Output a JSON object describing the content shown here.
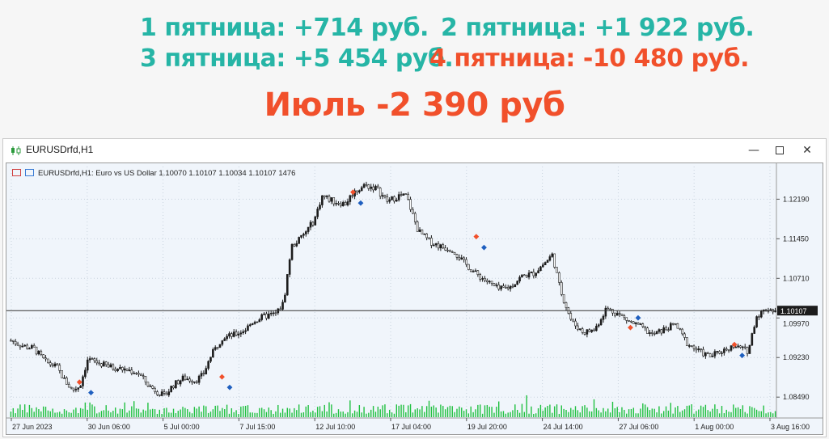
{
  "banner": {
    "friday1": {
      "label": "1 пятница: ",
      "value": "+714 руб."
    },
    "friday2": {
      "label": "2 пятница: ",
      "value": "+1 922 руб."
    },
    "friday3": {
      "label": "3 пятница: ",
      "value": "+5 454 руб."
    },
    "friday4": {
      "label": "4 пятница: ",
      "value": "-10 480 руб."
    },
    "month_total": "Июль -2 390 руб",
    "colors": {
      "positive": "#26b5a6",
      "negative": "#f1502b"
    }
  },
  "window": {
    "title": "EURUSDrfd,H1",
    "icon": "candlestick-chart-icon",
    "buttons": {
      "minimize": "—",
      "maximize": "maximize-icon",
      "close": "✕"
    }
  },
  "chart": {
    "info_symbol": "EURUSDrfd,H1:  Euro vs US Dollar  1.10070 1.10107 1.10034 1.10107  1476",
    "current_price_label": "1.10107",
    "current_price": 1.10107
  },
  "chart_data": {
    "type": "candlestick",
    "symbol": "EURUSDrfd",
    "timeframe": "H1",
    "title": "Euro vs US Dollar",
    "ohlc_last": {
      "open": 1.1007,
      "high": 1.10107,
      "low": 1.10034,
      "close": 1.10107
    },
    "volume_last": 1476,
    "ylim": [
      1.081,
      1.128
    ],
    "y_ticks": [
      "1.12190",
      "1.11450",
      "1.10710",
      "1.09970",
      "1.09230",
      "1.08490"
    ],
    "x_ticks": [
      "27 Jun 2023",
      "30 Jun 06:00",
      "5 Jul 00:00",
      "7 Jul 15:00",
      "12 Jul 10:00",
      "17 Jul 04:00",
      "19 Jul 20:00",
      "24 Jul 14:00",
      "27 Jul 06:00",
      "1 Aug 00:00",
      "3 Aug 16:00"
    ],
    "price_path": [
      [
        0,
        1.0955
      ],
      [
        3,
        1.0945
      ],
      [
        6,
        1.094
      ],
      [
        9,
        1.0915
      ],
      [
        12,
        1.0905
      ],
      [
        14,
        1.088
      ],
      [
        16,
        1.0862
      ],
      [
        18,
        1.087
      ],
      [
        20,
        1.092
      ],
      [
        23,
        1.0912
      ],
      [
        26,
        1.0905
      ],
      [
        30,
        1.09
      ],
      [
        33,
        1.0895
      ],
      [
        36,
        1.087
      ],
      [
        38,
        1.086
      ],
      [
        40,
        1.085
      ],
      [
        42,
        1.087
      ],
      [
        45,
        1.0885
      ],
      [
        48,
        1.088
      ],
      [
        50,
        1.089
      ],
      [
        52,
        1.0925
      ],
      [
        55,
        1.096
      ],
      [
        58,
        1.0965
      ],
      [
        61,
        1.0975
      ],
      [
        63,
        1.099
      ],
      [
        66,
        1.1
      ],
      [
        69,
        1.1005
      ],
      [
        71,
        1.1025
      ],
      [
        73,
        1.113
      ],
      [
        76,
        1.115
      ],
      [
        79,
        1.118
      ],
      [
        81,
        1.1225
      ],
      [
        84,
        1.1215
      ],
      [
        87,
        1.121
      ],
      [
        89,
        1.123
      ],
      [
        92,
        1.1245
      ],
      [
        95,
        1.124
      ],
      [
        98,
        1.1215
      ],
      [
        101,
        1.1225
      ],
      [
        103,
        1.1225
      ],
      [
        106,
        1.116
      ],
      [
        109,
        1.114
      ],
      [
        112,
        1.113
      ],
      [
        115,
        1.1125
      ],
      [
        118,
        1.11
      ],
      [
        121,
        1.108
      ],
      [
        124,
        1.1065
      ],
      [
        127,
        1.105
      ],
      [
        130,
        1.1055
      ],
      [
        133,
        1.1075
      ],
      [
        136,
        1.108
      ],
      [
        139,
        1.11
      ],
      [
        141,
        1.1115
      ],
      [
        143,
        1.105
      ],
      [
        146,
        1.099
      ],
      [
        149,
        1.097
      ],
      [
        152,
        1.0975
      ],
      [
        155,
        1.1015
      ],
      [
        158,
        1.1005
      ],
      [
        161,
        1.099
      ],
      [
        164,
        1.098
      ],
      [
        167,
        1.0965
      ],
      [
        170,
        1.0975
      ],
      [
        173,
        1.0985
      ],
      [
        176,
        1.095
      ],
      [
        179,
        1.0935
      ],
      [
        182,
        1.0925
      ],
      [
        185,
        1.0935
      ],
      [
        188,
        1.0945
      ],
      [
        190,
        1.094
      ],
      [
        192,
        1.0935
      ],
      [
        194,
        1.1
      ],
      [
        197,
        1.1015
      ],
      [
        199,
        1.101
      ]
    ],
    "grid": true,
    "series": [
      {
        "name": "EURUSDrfd",
        "values": "price_path"
      }
    ],
    "annotations": {
      "sell_markers": [
        [
          18,
          1.0878
        ],
        [
          55,
          1.0888
        ],
        [
          89,
          1.1233
        ],
        [
          121,
          1.115
        ],
        [
          161,
          1.098
        ],
        [
          188,
          1.0948
        ]
      ],
      "buy_markers": [
        [
          21,
          1.0858
        ],
        [
          57,
          1.0868
        ],
        [
          91,
          1.1213
        ],
        [
          123,
          1.113
        ],
        [
          163,
          1.0998
        ],
        [
          190,
          1.0928
        ]
      ]
    }
  }
}
